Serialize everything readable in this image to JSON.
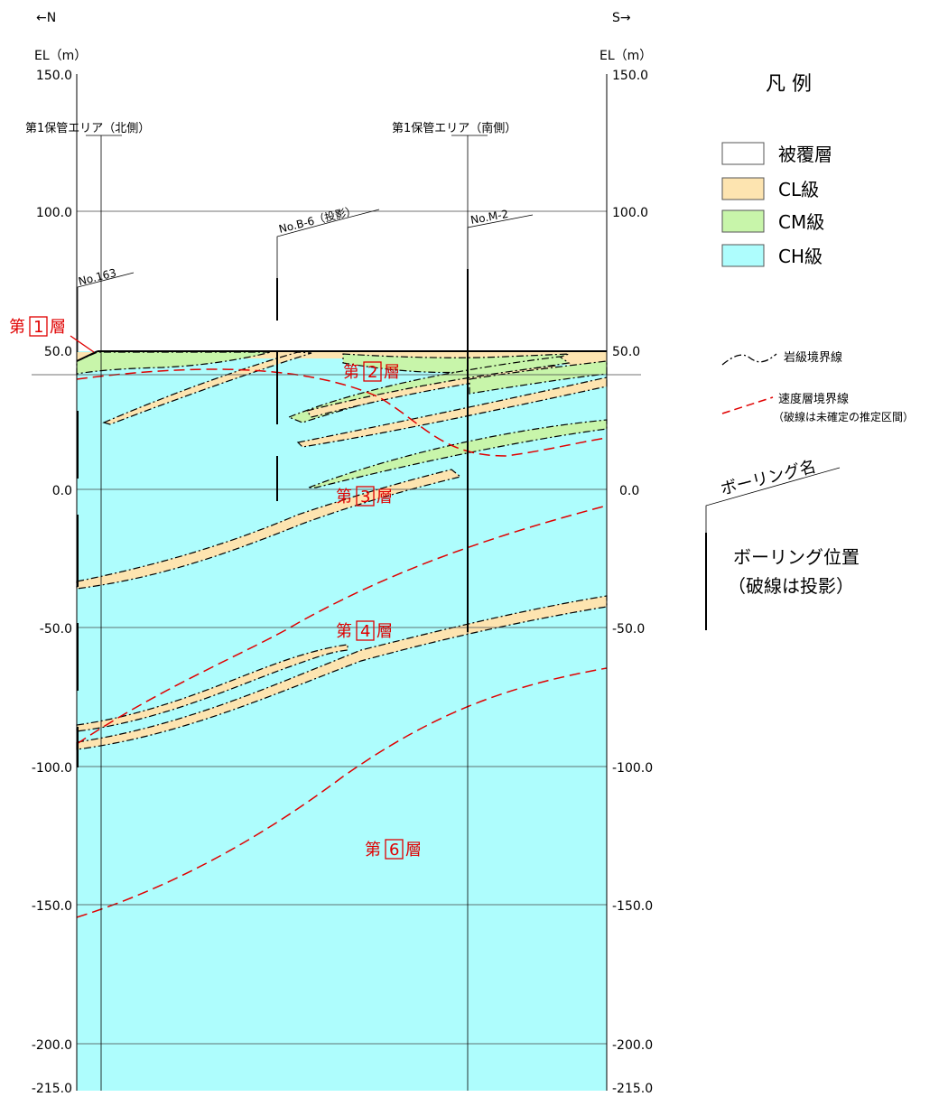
{
  "header": {
    "north_label": "←N",
    "south_label": "S→"
  },
  "axis": {
    "left_unit": "EL（m）",
    "right_unit": "EL（m）",
    "ticks": [
      {
        "value": 150,
        "label": "150.0"
      },
      {
        "value": 100,
        "label": "100.0"
      },
      {
        "value": 50,
        "label": "50.0"
      },
      {
        "value": 0,
        "label": "0.0"
      },
      {
        "value": -50,
        "label": "-50.0"
      },
      {
        "value": -100,
        "label": "-100.0"
      },
      {
        "value": -150,
        "label": "-150.0"
      },
      {
        "value": -200,
        "label": "-200.0"
      },
      {
        "value": -215,
        "label": "-215.0"
      }
    ],
    "range": [
      -215,
      150
    ]
  },
  "zones": [
    {
      "label": "第1保管エリア（北側）"
    },
    {
      "label": "第1保管エリア（南側）"
    }
  ],
  "boreholes": [
    {
      "name": "No.163"
    },
    {
      "name": "No.B-6（投影）"
    },
    {
      "name": "No.M-2"
    }
  ],
  "layers": [
    {
      "prefix": "第",
      "num": "1",
      "suffix": "層"
    },
    {
      "prefix": "第",
      "num": "2",
      "suffix": "層"
    },
    {
      "prefix": "第",
      "num": "3",
      "suffix": "層"
    },
    {
      "prefix": "第",
      "num": "4",
      "suffix": "層"
    },
    {
      "prefix": "第",
      "num": "6",
      "suffix": "層"
    }
  ],
  "legend": {
    "title": "凡 例",
    "items": [
      {
        "label": "被覆層",
        "color": "#ffffff"
      },
      {
        "label": "CL級",
        "color": "#fde4b0"
      },
      {
        "label": "CM級",
        "color": "#c8f5aa"
      },
      {
        "label": "CH級",
        "color": "#aefdfd"
      }
    ],
    "rock_boundary": "岩級境界線",
    "velocity_boundary": "速度層境界線",
    "velocity_note": "（破線は未確定の推定区間）",
    "boring_name": "ボーリング名",
    "boring_position": "ボーリング位置",
    "boring_position_note": "（破線は投影）"
  },
  "colors": {
    "ch": "#aefdfd",
    "cl": "#fde4b0",
    "cm": "#c8f5aa",
    "velocity_line": "#e00000"
  }
}
